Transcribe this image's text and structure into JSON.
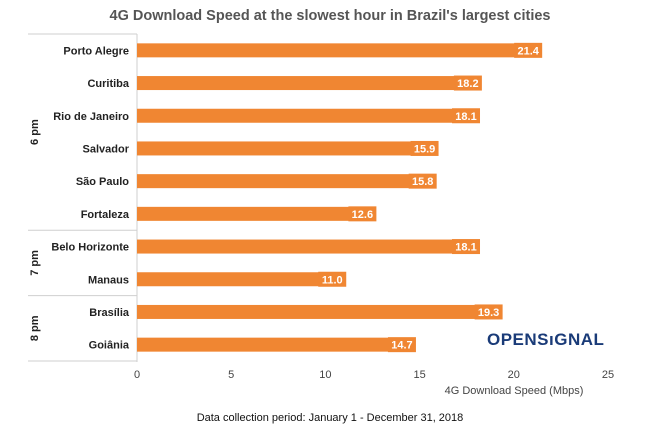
{
  "chart_data": {
    "type": "bar",
    "orientation": "horizontal",
    "title": "4G Download Speed at the slowest hour in Brazil's largest cities",
    "xlabel": "4G Download Speed (Mbps)",
    "ylabel": "",
    "xlim": [
      0,
      25
    ],
    "xticks": [
      "0",
      "5",
      "10",
      "15",
      "20",
      "25"
    ],
    "grid": false,
    "legend": "none",
    "bar_color": "#f08632",
    "groups": [
      {
        "label": "6 pm",
        "categories": [
          "Porto Alegre",
          "Curitiba",
          "Rio de Janeiro",
          "Salvador",
          "São Paulo",
          "Fortaleza"
        ],
        "values": [
          21.4,
          18.2,
          18.1,
          15.9,
          15.8,
          12.6
        ]
      },
      {
        "label": "7 pm",
        "categories": [
          "Belo Horizonte",
          "Manaus"
        ],
        "values": [
          18.1,
          11.0
        ]
      },
      {
        "label": "8 pm",
        "categories": [
          "Brasília",
          "Goiânia"
        ],
        "values": [
          19.3,
          14.7
        ]
      }
    ],
    "value_labels": [
      "21.4",
      "18.2",
      "18.1",
      "15.9",
      "15.8",
      "12.6",
      "18.1",
      "11.0",
      "19.3",
      "14.7"
    ]
  },
  "footnote": "Data collection period: January 1 - December 31, 2018",
  "logo": {
    "text_before": "OPENS",
    "text_after": "GNAL",
    "color": "#1a3b78"
  }
}
